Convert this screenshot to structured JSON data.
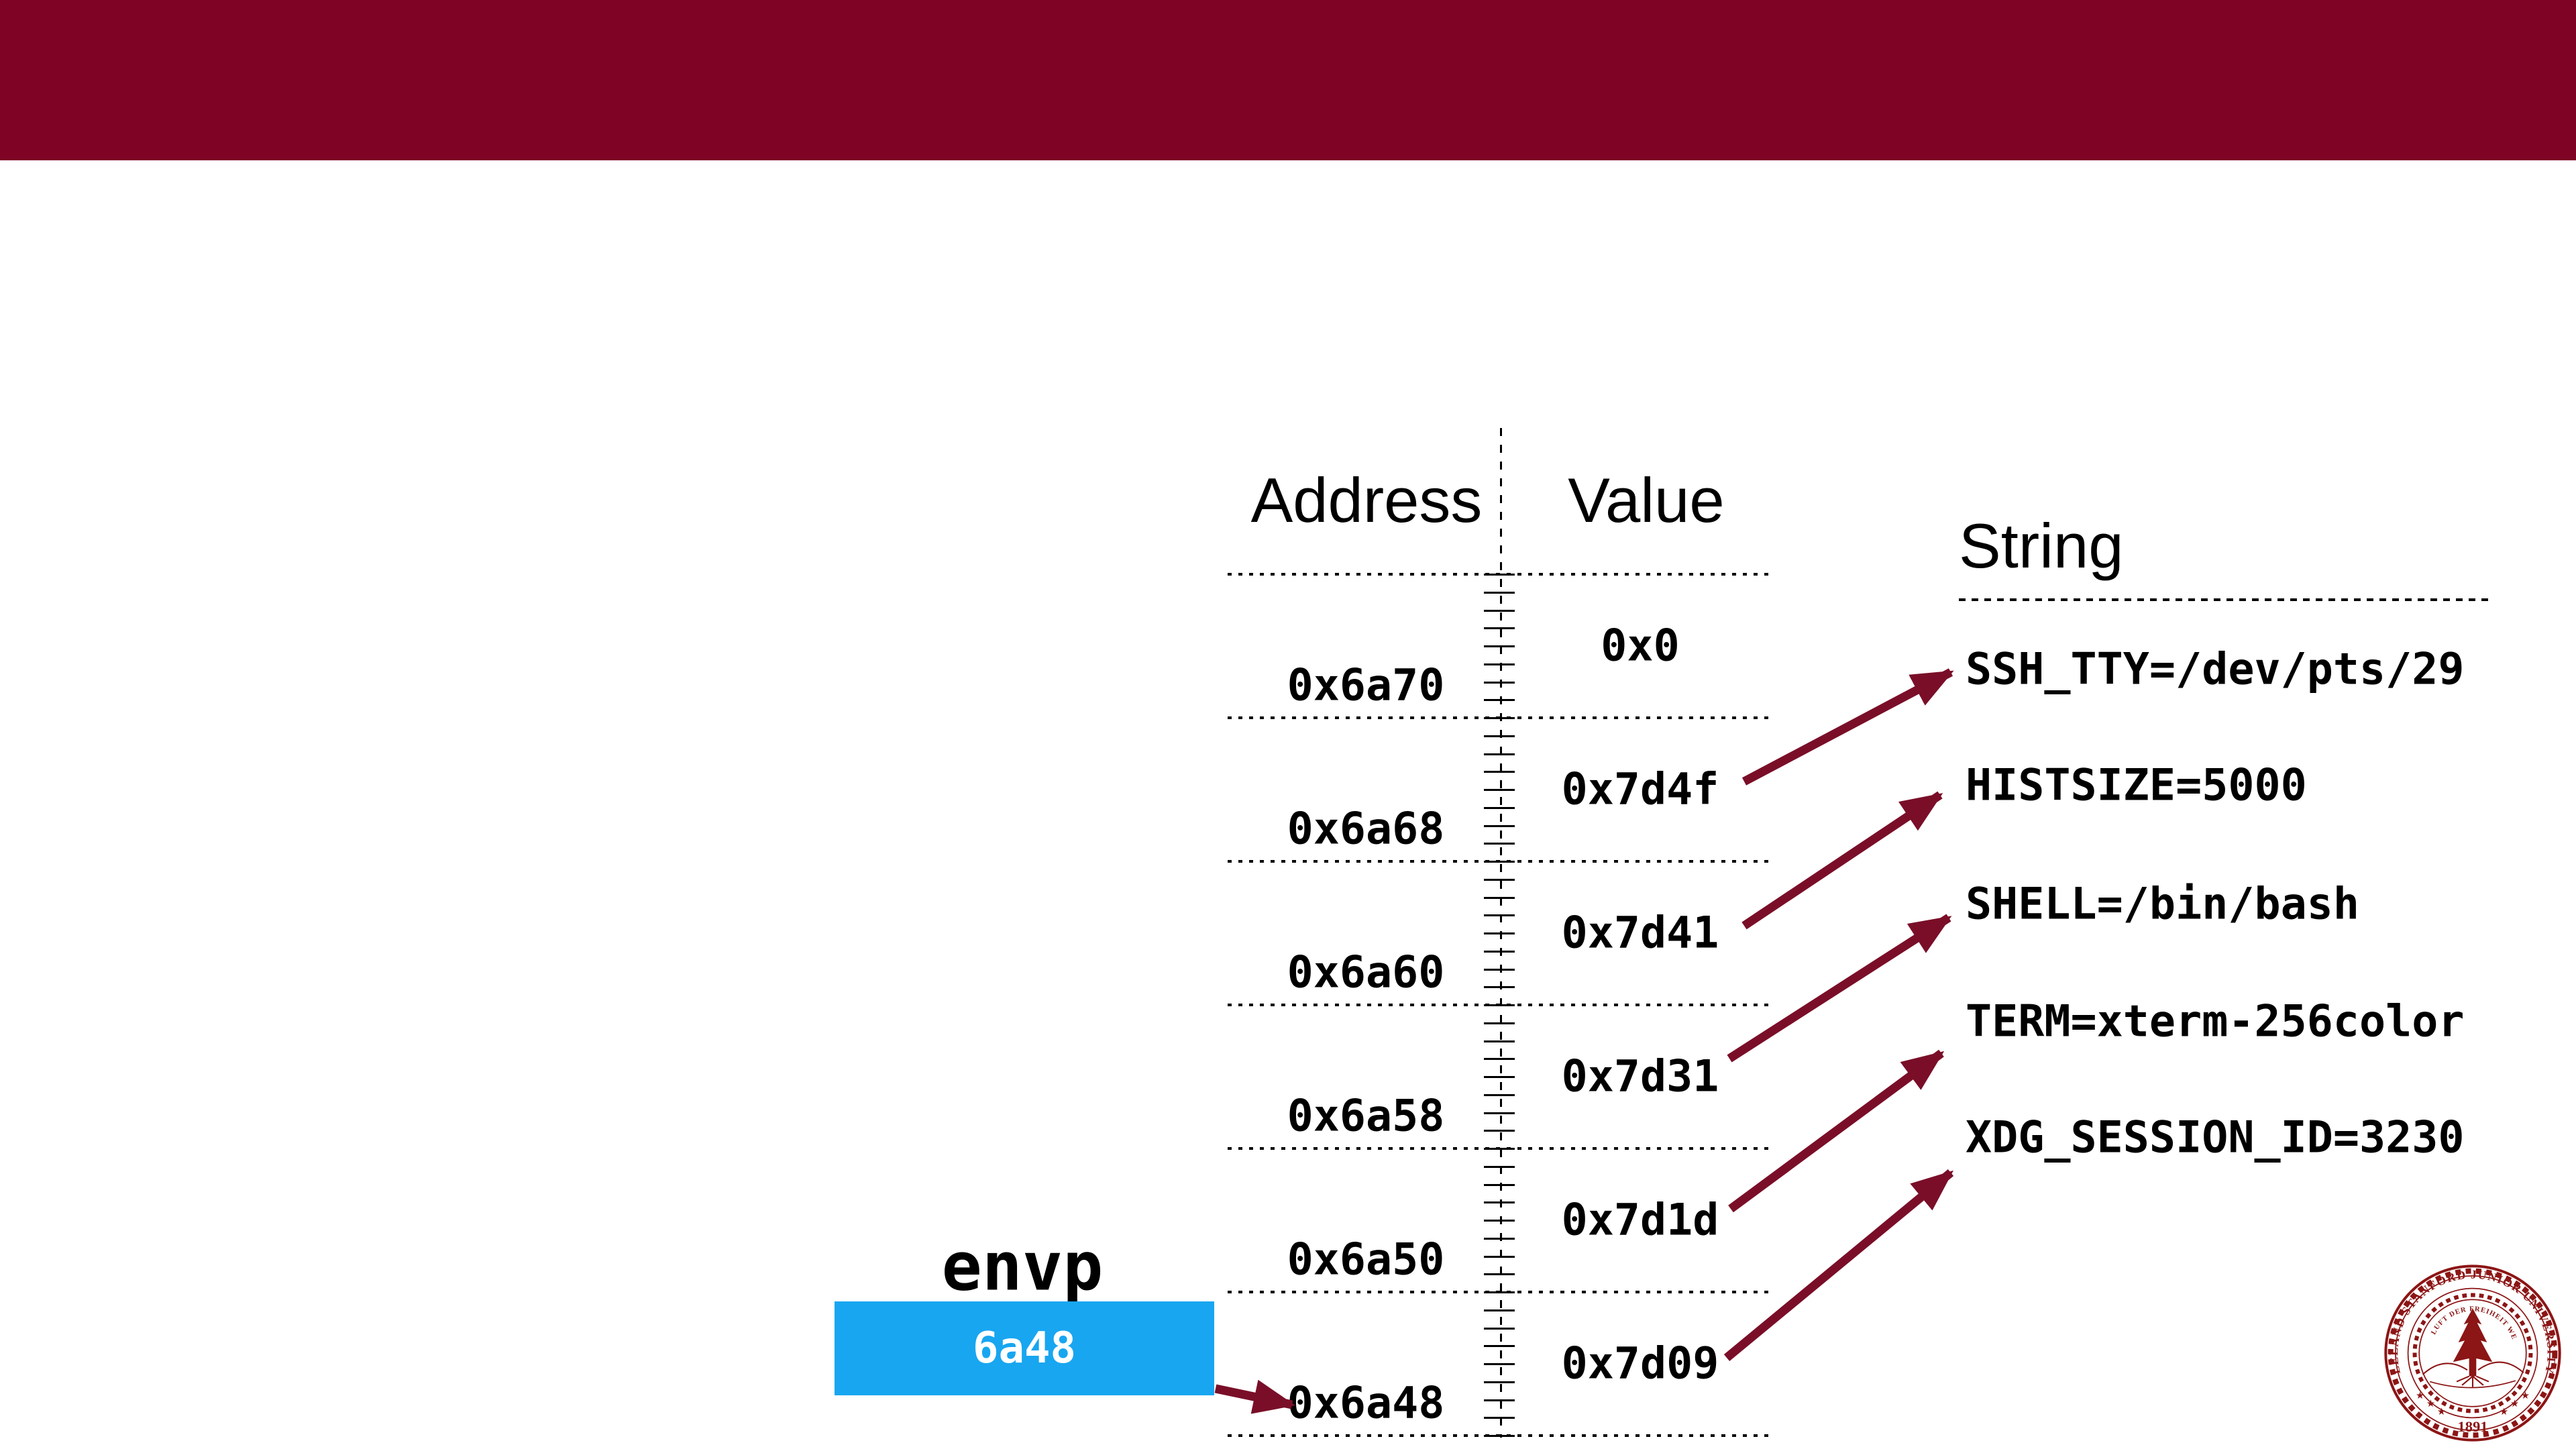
{
  "slide": {
    "background_color": "#ffffff",
    "header_bar_color": "#7e0324"
  },
  "table": {
    "address_header": "Address",
    "value_header": "Value",
    "rows": [
      {
        "address": "0x6a70",
        "value": "0x0"
      },
      {
        "address": "0x6a68",
        "value": "0x7d4f"
      },
      {
        "address": "0x6a60",
        "value": "0x7d41"
      },
      {
        "address": "0x6a58",
        "value": "0x7d31"
      },
      {
        "address": "0x6a50",
        "value": "0x7d1d"
      },
      {
        "address": "0x6a48",
        "value": "0x7d09"
      }
    ]
  },
  "strings": {
    "header": "String",
    "items": [
      "SSH_TTY=/dev/pts/29",
      "HISTSIZE=5000",
      "SHELL=/bin/bash",
      "TERM=xterm-256color",
      "XDG_SESSION_ID=3230"
    ]
  },
  "pointer": {
    "label": "envp",
    "box_value": "6a48",
    "box_color": "#18a6f0",
    "points_to_address": "0x6a48"
  },
  "arrows": {
    "color": "#7a0e28",
    "value_to_string": [
      {
        "from_value": "0x7d4f",
        "to_string": "SSH_TTY=/dev/pts/29"
      },
      {
        "from_value": "0x7d41",
        "to_string": "HISTSIZE=5000"
      },
      {
        "from_value": "0x7d31",
        "to_string": "SHELL=/bin/bash"
      },
      {
        "from_value": "0x7d1d",
        "to_string": "TERM=xterm-256color"
      },
      {
        "from_value": "0x7d09",
        "to_string": "XDG_SESSION_ID=3230"
      }
    ],
    "envp_to_address": {
      "from": "envp",
      "to": "0x6a48"
    }
  },
  "seal": {
    "color": "#8c1515",
    "university_text": "LELAND STANFORD JUNIOR UNIVERSITY",
    "motto": "DIE LUFT DER FREIHEIT WEHT",
    "year": "1891"
  }
}
